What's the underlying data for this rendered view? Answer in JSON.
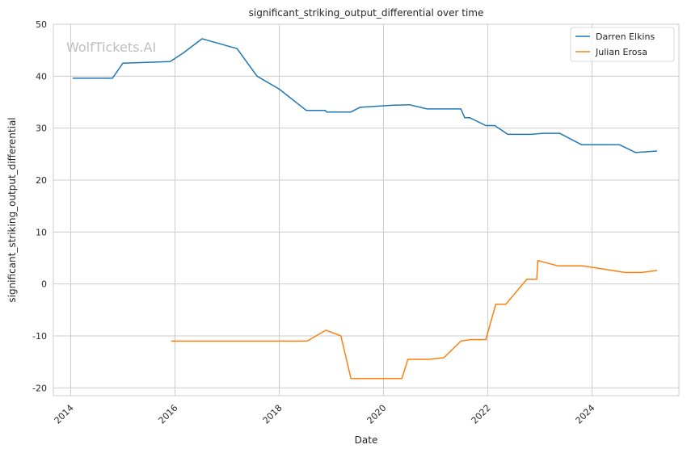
{
  "watermark": "WolfTickets.AI",
  "chart_data": {
    "type": "line",
    "title": "significant_striking_output_differential over time",
    "xlabel": "Date",
    "ylabel": "significant_striking_output_differential",
    "xlim": [
      "2013-09-01",
      "2025-09-01"
    ],
    "ylim": [
      -21.5,
      50
    ],
    "x_ticks": [
      "2014",
      "2016",
      "2018",
      "2020",
      "2022",
      "2024"
    ],
    "y_ticks": [
      -20,
      -10,
      0,
      10,
      20,
      30,
      40,
      50
    ],
    "grid": true,
    "legend_position": "top-right",
    "series": [
      {
        "name": "Darren Elkins",
        "color": "#1f77b4",
        "points": [
          [
            "2014-01-15",
            39.6
          ],
          [
            "2014-10-20",
            39.6
          ],
          [
            "2015-01-01",
            42.5
          ],
          [
            "2015-11-28",
            42.8
          ],
          [
            "2016-03-01",
            44.5
          ],
          [
            "2016-07-09",
            47.2
          ],
          [
            "2017-03-11",
            45.3
          ],
          [
            "2017-07-29",
            40.0
          ],
          [
            "2018-01-01",
            37.5
          ],
          [
            "2018-07-10",
            33.4
          ],
          [
            "2018-11-20",
            33.4
          ],
          [
            "2018-11-28",
            33.1
          ],
          [
            "2019-05-18",
            33.1
          ],
          [
            "2019-07-20",
            34.0
          ],
          [
            "2020-03-01",
            34.4
          ],
          [
            "2020-07-01",
            34.5
          ],
          [
            "2020-11-01",
            33.7
          ],
          [
            "2021-06-26",
            33.7
          ],
          [
            "2021-07-24",
            32.0
          ],
          [
            "2021-08-28",
            32.0
          ],
          [
            "2021-12-18",
            30.5
          ],
          [
            "2022-02-19",
            30.5
          ],
          [
            "2022-05-21",
            28.8
          ],
          [
            "2022-10-29",
            28.8
          ],
          [
            "2023-01-21",
            29.0
          ],
          [
            "2023-05-20",
            29.0
          ],
          [
            "2023-10-21",
            26.8
          ],
          [
            "2024-07-13",
            26.8
          ],
          [
            "2024-11-02",
            25.3
          ],
          [
            "2025-04-01",
            25.6
          ]
        ]
      },
      {
        "name": "Julian Erosa",
        "color": "#ff7f0e",
        "points": [
          [
            "2015-12-05",
            -11.0
          ],
          [
            "2018-07-15",
            -11.0
          ],
          [
            "2018-11-24",
            -8.9
          ],
          [
            "2019-03-09",
            -10.0
          ],
          [
            "2019-05-18",
            -18.2
          ],
          [
            "2020-05-09",
            -18.2
          ],
          [
            "2020-06-20",
            -14.5
          ],
          [
            "2020-11-14",
            -14.5
          ],
          [
            "2021-02-27",
            -14.2
          ],
          [
            "2021-06-26",
            -11.0
          ],
          [
            "2021-09-04",
            -10.7
          ],
          [
            "2021-12-18",
            -10.7
          ],
          [
            "2022-02-26",
            -3.9
          ],
          [
            "2022-05-07",
            -3.9
          ],
          [
            "2022-10-01",
            0.9
          ],
          [
            "2022-12-10",
            0.9
          ],
          [
            "2022-12-17",
            4.5
          ],
          [
            "2023-05-06",
            3.5
          ],
          [
            "2023-10-28",
            3.5
          ],
          [
            "2024-04-27",
            2.7
          ],
          [
            "2024-08-24",
            2.2
          ],
          [
            "2024-12-07",
            2.2
          ],
          [
            "2025-04-01",
            2.6
          ]
        ]
      }
    ]
  }
}
